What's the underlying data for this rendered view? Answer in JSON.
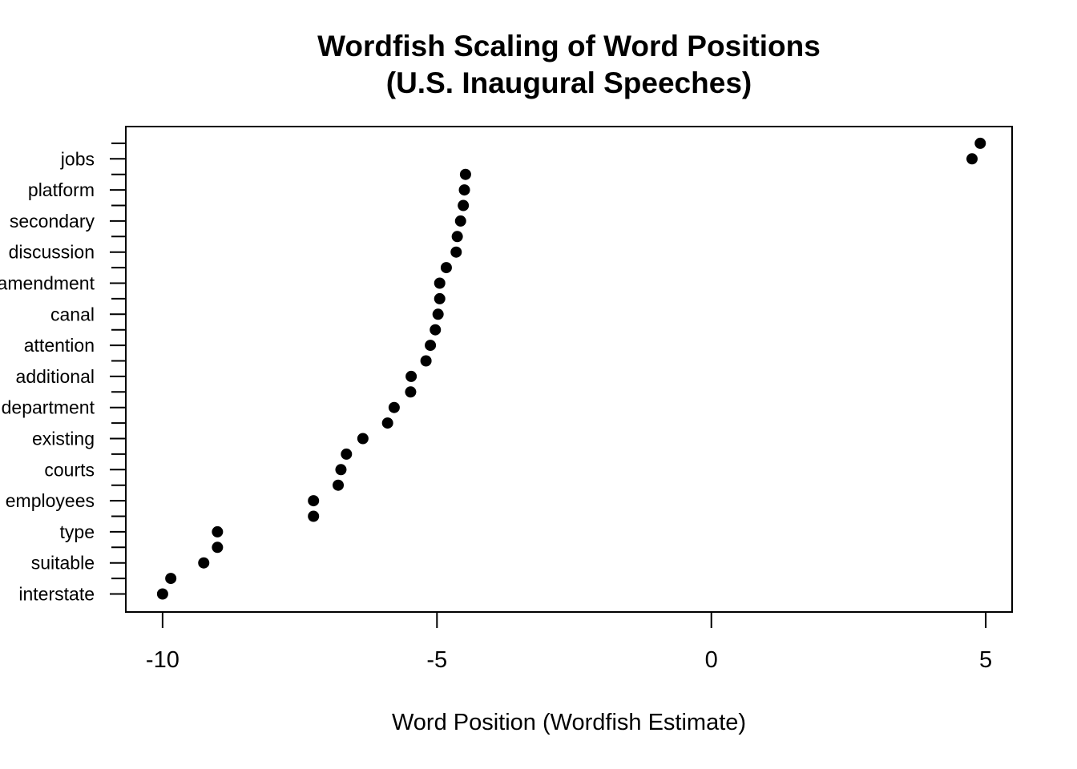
{
  "chart_data": {
    "type": "scatter",
    "title_lines": [
      "Wordfish Scaling of Word Positions",
      "(U.S. Inaugural Speeches)"
    ],
    "xlabel": "Word Position (Wordfish Estimate)",
    "ylabel": "",
    "xlim": [
      -10.67,
      5.48
    ],
    "x_ticks": [
      -10,
      -5,
      0,
      5
    ],
    "x_tick_labels": [
      "-10",
      "-5",
      "0",
      "5"
    ],
    "grid": false,
    "legend": "none",
    "point_color": "#000000",
    "y_tick_count": 30,
    "y_labels": [
      "interstate",
      "suitable",
      "type",
      "employees",
      "courts",
      "existing",
      "department",
      "additional",
      "attention",
      "canal",
      "amendment",
      "discussion",
      "secondary",
      "platform",
      "jobs"
    ],
    "x_values": [
      -10.0,
      -9.85,
      -9.25,
      -9.0,
      -9.0,
      -7.25,
      -7.25,
      -6.8,
      -6.75,
      -6.65,
      -6.35,
      -5.9,
      -5.78,
      -5.48,
      -5.47,
      -5.2,
      -5.12,
      -5.03,
      -4.98,
      -4.95,
      -4.95,
      -4.83,
      -4.65,
      -4.63,
      -4.57,
      -4.52,
      -4.5,
      -4.48,
      4.75,
      4.9
    ]
  }
}
